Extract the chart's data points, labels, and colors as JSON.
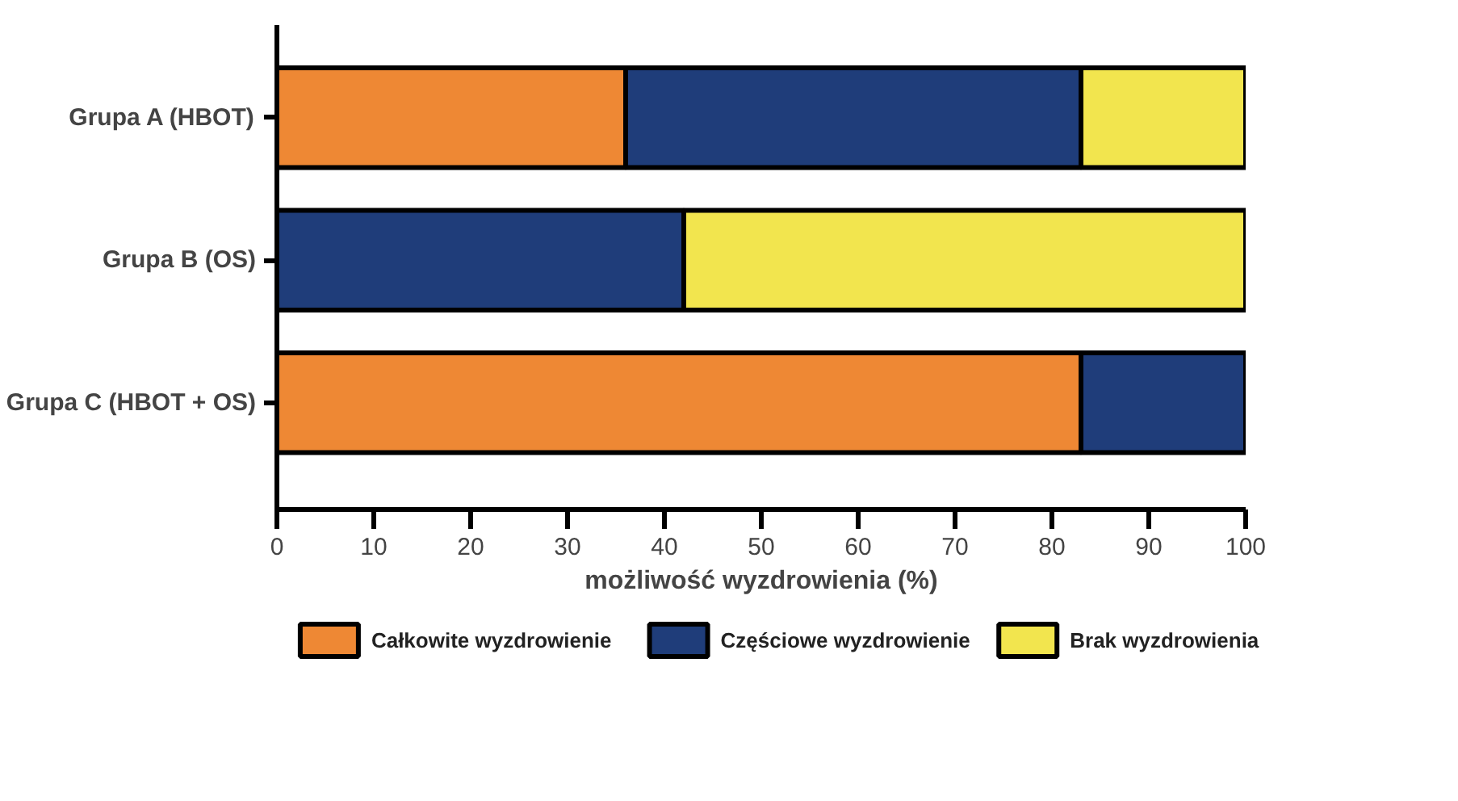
{
  "chart_data": {
    "type": "bar",
    "orientation": "horizontal",
    "stacked": true,
    "xlabel": "możliwość wyzdrowienia (%)",
    "categories": [
      "Grupa A (HBOT)",
      "Grupa B (OS)",
      "Grupa C (HBOT + OS)"
    ],
    "series": [
      {
        "name": "Całkowite wyzdrowienie",
        "color": "#ee8834",
        "values": [
          36,
          0,
          83
        ]
      },
      {
        "name": "Częściowe wyzdrowienie",
        "color": "#1f3d7a",
        "values": [
          47,
          42,
          17
        ]
      },
      {
        "name": "Brak wyzdrowienia",
        "color": "#f2e54e",
        "values": [
          17,
          58,
          0
        ]
      }
    ],
    "xlim": [
      0,
      100
    ],
    "xticks": [
      0,
      10,
      20,
      30,
      40,
      50,
      60,
      70,
      80,
      90,
      100
    ],
    "grid": false,
    "legend": "bottom"
  }
}
